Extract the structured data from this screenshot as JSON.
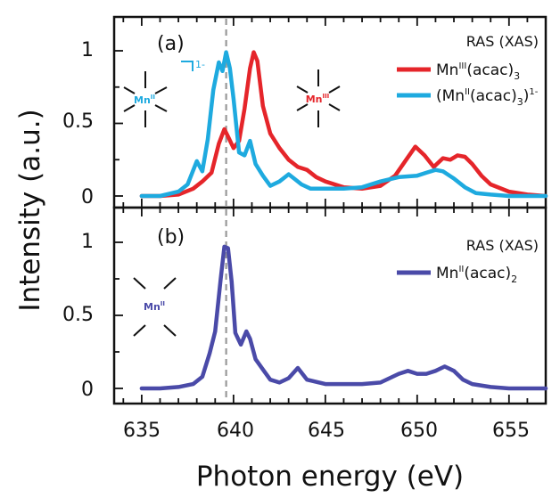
{
  "chart_data": [
    {
      "type": "line",
      "panel_label": "(a)",
      "method_label": "RAS (XAS)",
      "xlim": [
        633.5,
        657
      ],
      "ylim": [
        -0.1,
        1.15
      ],
      "yticks": [
        "0",
        "0.5",
        "1"
      ],
      "reference_line_x": 639.6,
      "colors": {
        "Mn3": "#e5252a",
        "Mn2anion": "#1eaadf"
      },
      "legend": [
        {
          "series": 0,
          "base": "Mn",
          "sup": "III",
          "rest": "(acac)",
          "sub": "3",
          "tail": "",
          "tailsup": ""
        },
        {
          "series": 1,
          "base": "(Mn",
          "sup": "II",
          "rest": "(acac)",
          "sub": "3",
          "tail": ")",
          "tailsup": "1-"
        }
      ],
      "molecules": [
        {
          "label": "Mn",
          "sup": "II",
          "charge": "1-",
          "color": "#1eaadf"
        },
        {
          "label": "Mn",
          "sup": "III",
          "charge": "",
          "color": "#e5252a"
        }
      ],
      "series": [
        {
          "color": "#e5252a",
          "x": [
            635,
            636,
            637,
            637.8,
            638.3,
            638.8,
            639.2,
            639.5,
            639.7,
            640.0,
            640.3,
            640.6,
            640.9,
            641.1,
            641.3,
            641.6,
            642.0,
            642.5,
            643.0,
            643.5,
            644.0,
            644.5,
            645.0,
            646.0,
            647.0,
            648.0,
            648.8,
            649.4,
            649.9,
            650.4,
            650.9,
            651.4,
            651.8,
            652.2,
            652.6,
            653.0,
            653.5,
            654.0,
            655.0,
            656.0,
            657.0
          ],
          "y": [
            0.0,
            0.0,
            0.01,
            0.05,
            0.1,
            0.16,
            0.36,
            0.46,
            0.41,
            0.33,
            0.38,
            0.6,
            0.88,
            0.99,
            0.93,
            0.62,
            0.43,
            0.33,
            0.25,
            0.2,
            0.18,
            0.13,
            0.1,
            0.06,
            0.05,
            0.07,
            0.14,
            0.25,
            0.34,
            0.28,
            0.2,
            0.26,
            0.25,
            0.28,
            0.27,
            0.22,
            0.14,
            0.08,
            0.03,
            0.01,
            0.0
          ]
        },
        {
          "color": "#1eaadf",
          "x": [
            635,
            636,
            637,
            637.5,
            638.0,
            638.3,
            638.6,
            638.9,
            639.2,
            639.4,
            639.6,
            639.8,
            640.0,
            640.3,
            640.6,
            640.9,
            641.2,
            641.6,
            642.0,
            642.5,
            643.0,
            643.3,
            643.7,
            644.2,
            645.0,
            646.0,
            647.0,
            648.0,
            649.0,
            650.0,
            650.5,
            651.0,
            651.4,
            652.0,
            652.6,
            653.2,
            654.0,
            655.0,
            656.0,
            657.0
          ],
          "y": [
            0.0,
            0.0,
            0.03,
            0.08,
            0.24,
            0.17,
            0.39,
            0.73,
            0.92,
            0.86,
            0.99,
            0.88,
            0.67,
            0.3,
            0.28,
            0.38,
            0.22,
            0.14,
            0.07,
            0.1,
            0.15,
            0.12,
            0.08,
            0.05,
            0.05,
            0.05,
            0.06,
            0.1,
            0.13,
            0.14,
            0.16,
            0.18,
            0.17,
            0.12,
            0.06,
            0.02,
            0.01,
            0.0,
            0.0,
            0.0
          ]
        }
      ]
    },
    {
      "type": "line",
      "panel_label": "(b)",
      "method_label": "RAS (XAS)",
      "xlim": [
        633.5,
        657
      ],
      "ylim": [
        -0.1,
        1.15
      ],
      "yticks": [
        "0",
        "0.5",
        "1"
      ],
      "xticks": [
        "635",
        "640",
        "645",
        "650",
        "655"
      ],
      "xlabel": "Photon energy (eV)",
      "ylabel": "Intensity (a.u.)",
      "reference_line_x": 639.6,
      "colors": {
        "Mn2": "#4a4aa8"
      },
      "legend": [
        {
          "series": 0,
          "base": "Mn",
          "sup": "II",
          "rest": "(acac)",
          "sub": "2",
          "tail": "",
          "tailsup": ""
        }
      ],
      "molecules": [
        {
          "label": "Mn",
          "sup": "II",
          "charge": "",
          "color": "#4a4aa8"
        }
      ],
      "series": [
        {
          "color": "#4a4aa8",
          "x": [
            635,
            636,
            637,
            637.8,
            638.3,
            638.7,
            639.0,
            639.3,
            639.5,
            639.7,
            639.9,
            640.1,
            640.4,
            640.7,
            640.9,
            641.2,
            641.6,
            642.0,
            642.5,
            643.0,
            643.5,
            644.0,
            645.0,
            646.0,
            647.0,
            648.0,
            649.0,
            649.5,
            650.0,
            650.5,
            651.0,
            651.5,
            652.0,
            652.5,
            653.0,
            654.0,
            655.0,
            656.0,
            657.0
          ],
          "y": [
            0.0,
            0.0,
            0.01,
            0.03,
            0.08,
            0.24,
            0.39,
            0.75,
            0.97,
            0.96,
            0.73,
            0.38,
            0.3,
            0.39,
            0.34,
            0.2,
            0.13,
            0.06,
            0.04,
            0.07,
            0.14,
            0.06,
            0.03,
            0.03,
            0.03,
            0.04,
            0.1,
            0.12,
            0.1,
            0.1,
            0.12,
            0.15,
            0.12,
            0.06,
            0.03,
            0.01,
            0.0,
            0.0,
            0.0
          ]
        }
      ]
    }
  ]
}
